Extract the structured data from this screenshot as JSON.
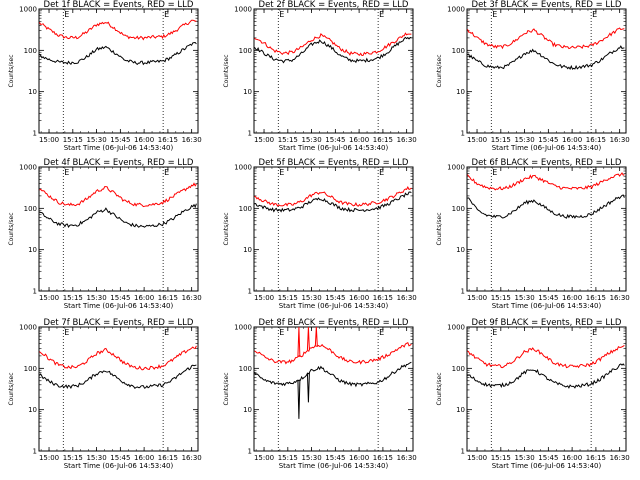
{
  "chart_data": [
    {
      "type": "line",
      "title": "Det 1f BLACK = Events, RED = LLD",
      "xlabel": "Start Time (06-Jul-06 14:53:40)",
      "ylabel": "Counts/sec",
      "yscale": "log",
      "ylim": [
        1,
        1000
      ],
      "ytick_labels": [
        "1",
        "10",
        "100",
        "1000"
      ],
      "xlim": [
        "14:53:40",
        "16:34:00"
      ],
      "xtick_labels": [
        "15:00",
        "15:15",
        "15:30",
        "15:45",
        "16:00",
        "16:15",
        "16:30"
      ],
      "markers": [
        {
          "label": "E",
          "time": "15:09"
        },
        {
          "label": "E",
          "time": "16:12"
        }
      ],
      "x": [
        "14:54",
        "15:00",
        "15:06",
        "15:12",
        "15:18",
        "15:24",
        "15:30",
        "15:36",
        "15:42",
        "15:48",
        "15:54",
        "16:00",
        "16:06",
        "16:12",
        "16:18",
        "16:24",
        "16:30",
        "16:33"
      ],
      "series": [
        {
          "name": "RED",
          "color": "#ff0000",
          "values": [
            460,
            320,
            230,
            200,
            205,
            280,
            420,
            480,
            330,
            220,
            200,
            200,
            210,
            215,
            270,
            380,
            520,
            500
          ]
        },
        {
          "name": "BLACK",
          "color": "#000000",
          "values": [
            75,
            60,
            52,
            50,
            52,
            70,
            105,
            120,
            85,
            58,
            50,
            50,
            52,
            55,
            70,
            100,
            140,
            150
          ]
        }
      ]
    },
    {
      "type": "line",
      "title": "Det 2f BLACK = Events, RED = LLD",
      "xlabel": "Start Time (06-Jul-06 14:53:40)",
      "ylabel": "Counts/sec",
      "yscale": "log",
      "ylim": [
        1,
        1000
      ],
      "ytick_labels": [
        "1",
        "10",
        "100",
        "1000"
      ],
      "xlim": [
        "14:53:40",
        "16:34:00"
      ],
      "xtick_labels": [
        "15:00",
        "15:15",
        "15:30",
        "15:45",
        "16:00",
        "16:15",
        "16:30"
      ],
      "markers": [
        {
          "label": "E",
          "time": "15:09"
        },
        {
          "label": "E",
          "time": "16:12"
        }
      ],
      "x": [
        "14:54",
        "15:00",
        "15:06",
        "15:12",
        "15:18",
        "15:24",
        "15:30",
        "15:36",
        "15:42",
        "15:48",
        "15:54",
        "16:00",
        "16:06",
        "16:12",
        "16:18",
        "16:24",
        "16:30",
        "16:33"
      ],
      "series": [
        {
          "name": "RED",
          "color": "#ff0000",
          "values": [
            210,
            150,
            100,
            85,
            90,
            120,
            180,
            230,
            170,
            110,
            85,
            80,
            85,
            95,
            130,
            180,
            260,
            250
          ]
        },
        {
          "name": "BLACK",
          "color": "#000000",
          "values": [
            120,
            85,
            62,
            55,
            58,
            85,
            140,
            170,
            120,
            75,
            58,
            55,
            58,
            65,
            90,
            140,
            200,
            200
          ]
        }
      ]
    },
    {
      "type": "line",
      "title": "Det 3f BLACK = Events, RED = LLD",
      "xlabel": "Start Time (06-Jul-06 14:53:40)",
      "ylabel": "Counts/sec",
      "yscale": "log",
      "ylim": [
        1,
        1000
      ],
      "ytick_labels": [
        "1",
        "10",
        "100",
        "1000"
      ],
      "xlim": [
        "14:53:40",
        "16:34:00"
      ],
      "xtick_labels": [
        "15:00",
        "15:15",
        "15:30",
        "15:45",
        "16:00",
        "16:15",
        "16:30"
      ],
      "markers": [
        {
          "label": "E",
          "time": "15:09"
        },
        {
          "label": "E",
          "time": "16:12"
        }
      ],
      "x": [
        "14:54",
        "15:00",
        "15:06",
        "15:12",
        "15:18",
        "15:24",
        "15:30",
        "15:36",
        "15:42",
        "15:48",
        "15:54",
        "16:00",
        "16:06",
        "16:12",
        "16:18",
        "16:24",
        "16:30",
        "16:33"
      ],
      "series": [
        {
          "name": "RED",
          "color": "#ff0000",
          "values": [
            320,
            200,
            140,
            120,
            125,
            170,
            260,
            310,
            210,
            140,
            120,
            115,
            120,
            130,
            170,
            240,
            330,
            340
          ]
        },
        {
          "name": "BLACK",
          "color": "#000000",
          "values": [
            80,
            55,
            42,
            38,
            40,
            55,
            85,
            100,
            70,
            48,
            40,
            38,
            40,
            44,
            58,
            85,
            120,
            125
          ]
        }
      ]
    },
    {
      "type": "line",
      "title": "Det 4f BLACK = Events, RED = LLD",
      "xlabel": "Start Time (06-Jul-06 14:53:40)",
      "ylabel": "Counts/sec",
      "yscale": "log",
      "ylim": [
        1,
        1000
      ],
      "ytick_labels": [
        "1",
        "10",
        "100",
        "1000"
      ],
      "xlim": [
        "14:53:40",
        "16:34:00"
      ],
      "xtick_labels": [
        "15:00",
        "15:15",
        "15:30",
        "15:45",
        "16:00",
        "16:15",
        "16:30"
      ],
      "markers": [
        {
          "label": "E",
          "time": "15:09"
        },
        {
          "label": "E",
          "time": "16:12"
        }
      ],
      "x": [
        "14:54",
        "15:00",
        "15:06",
        "15:12",
        "15:18",
        "15:24",
        "15:30",
        "15:36",
        "15:42",
        "15:48",
        "15:54",
        "16:00",
        "16:06",
        "16:12",
        "16:18",
        "16:24",
        "16:30",
        "16:33"
      ],
      "series": [
        {
          "name": "RED",
          "color": "#ff0000",
          "values": [
            300,
            200,
            140,
            120,
            125,
            170,
            260,
            320,
            220,
            150,
            125,
            120,
            125,
            140,
            190,
            260,
            360,
            380
          ]
        },
        {
          "name": "BLACK",
          "color": "#000000",
          "values": [
            80,
            55,
            42,
            38,
            40,
            52,
            80,
            95,
            65,
            45,
            38,
            36,
            38,
            42,
            55,
            80,
            110,
            120
          ]
        }
      ]
    },
    {
      "type": "line",
      "title": "Det 5f BLACK = Events, RED = LLD",
      "xlabel": "Start Time (06-Jul-06 14:53:40)",
      "ylabel": "Counts/sec",
      "yscale": "log",
      "ylim": [
        1,
        1000
      ],
      "ytick_labels": [
        "1",
        "10",
        "100",
        "1000"
      ],
      "xlim": [
        "14:53:40",
        "16:34:00"
      ],
      "xtick_labels": [
        "15:00",
        "15:15",
        "15:30",
        "15:45",
        "16:00",
        "16:15",
        "16:30"
      ],
      "markers": [
        {
          "label": "E",
          "time": "15:09"
        },
        {
          "label": "E",
          "time": "16:12"
        }
      ],
      "x": [
        "14:54",
        "15:00",
        "15:06",
        "15:12",
        "15:18",
        "15:24",
        "15:30",
        "15:36",
        "15:42",
        "15:48",
        "15:54",
        "16:00",
        "16:06",
        "16:12",
        "16:18",
        "16:24",
        "16:30",
        "16:33"
      ],
      "series": [
        {
          "name": "RED",
          "color": "#ff0000",
          "values": [
            200,
            150,
            125,
            120,
            122,
            150,
            210,
            250,
            190,
            140,
            125,
            122,
            128,
            140,
            170,
            220,
            300,
            310
          ]
        },
        {
          "name": "BLACK",
          "color": "#000000",
          "values": [
            130,
            105,
            92,
            90,
            92,
            110,
            150,
            175,
            135,
            102,
            92,
            90,
            94,
            102,
            125,
            165,
            220,
            230
          ]
        }
      ]
    },
    {
      "type": "line",
      "title": "Det 6f BLACK = Events, RED = LLD",
      "xlabel": "Start Time (06-Jul-06 14:53:40)",
      "ylabel": "Counts/sec",
      "yscale": "log",
      "ylim": [
        1,
        1000
      ],
      "ytick_labels": [
        "1",
        "10",
        "100",
        "1000"
      ],
      "xlim": [
        "14:53:40",
        "16:34:00"
      ],
      "xtick_labels": [
        "15:00",
        "15:15",
        "15:30",
        "15:45",
        "16:00",
        "16:15",
        "16:30"
      ],
      "markers": [
        {
          "label": "E",
          "time": "15:09"
        },
        {
          "label": "E",
          "time": "16:12"
        }
      ],
      "x": [
        "14:54",
        "15:00",
        "15:06",
        "15:12",
        "15:18",
        "15:24",
        "15:30",
        "15:36",
        "15:42",
        "15:48",
        "15:54",
        "16:00",
        "16:06",
        "16:12",
        "16:18",
        "16:24",
        "16:30",
        "16:33"
      ],
      "series": [
        {
          "name": "RED",
          "color": "#ff0000",
          "values": [
            600,
            400,
            320,
            300,
            305,
            380,
            520,
            600,
            470,
            360,
            310,
            300,
            305,
            330,
            420,
            560,
            650,
            660
          ]
        },
        {
          "name": "BLACK",
          "color": "#000000",
          "values": [
            190,
            90,
            68,
            62,
            65,
            90,
            135,
            155,
            110,
            78,
            65,
            62,
            64,
            72,
            100,
            140,
            190,
            195
          ]
        }
      ]
    },
    {
      "type": "line",
      "title": "Det 7f BLACK = Events, RED = LLD",
      "xlabel": "Start Time (06-Jul-06 14:53:40)",
      "ylabel": "Counts/sec",
      "yscale": "log",
      "ylim": [
        1,
        1000
      ],
      "ytick_labels": [
        "1",
        "10",
        "100",
        "1000"
      ],
      "xlim": [
        "14:53:40",
        "16:34:00"
      ],
      "xtick_labels": [
        "15:00",
        "15:15",
        "15:30",
        "15:45",
        "16:00",
        "16:15",
        "16:30"
      ],
      "markers": [
        {
          "label": "E",
          "time": "15:09"
        },
        {
          "label": "E",
          "time": "16:12"
        }
      ],
      "x": [
        "14:54",
        "15:00",
        "15:06",
        "15:12",
        "15:18",
        "15:24",
        "15:30",
        "15:36",
        "15:42",
        "15:48",
        "15:54",
        "16:00",
        "16:06",
        "16:12",
        "16:18",
        "16:24",
        "16:30",
        "16:33"
      ],
      "series": [
        {
          "name": "RED",
          "color": "#ff0000",
          "values": [
            270,
            170,
            120,
            105,
            108,
            150,
            230,
            280,
            200,
            130,
            105,
            100,
            105,
            115,
            160,
            230,
            310,
            330
          ]
        },
        {
          "name": "BLACK",
          "color": "#000000",
          "values": [
            70,
            48,
            38,
            36,
            38,
            50,
            75,
            90,
            62,
            44,
            36,
            35,
            37,
            40,
            52,
            78,
            110,
            120
          ]
        }
      ]
    },
    {
      "type": "line",
      "title": "Det 8f BLACK = Events, RED = LLD",
      "xlabel": "Start Time (06-Jul-06 14:53:40)",
      "ylabel": "Counts/sec",
      "yscale": "log",
      "ylim": [
        1,
        1000
      ],
      "ytick_labels": [
        "1",
        "10",
        "100",
        "1000"
      ],
      "xlim": [
        "14:53:40",
        "16:34:00"
      ],
      "xtick_labels": [
        "15:00",
        "15:15",
        "15:30",
        "15:45",
        "16:00",
        "16:15",
        "16:30"
      ],
      "markers": [
        {
          "label": "E",
          "time": "15:09"
        },
        {
          "label": "E",
          "time": "16:12"
        }
      ],
      "x": [
        "14:54",
        "15:00",
        "15:06",
        "15:12",
        "15:18",
        "15:24",
        "15:30",
        "15:36",
        "15:42",
        "15:48",
        "15:54",
        "16:00",
        "16:06",
        "16:12",
        "16:18",
        "16:24",
        "16:30",
        "16:33"
      ],
      "series": [
        {
          "name": "RED",
          "color": "#ff0000",
          "values": [
            280,
            190,
            150,
            140,
            150,
            210,
            320,
            370,
            270,
            180,
            145,
            140,
            150,
            165,
            210,
            290,
            380,
            390
          ],
          "spikes": [
            {
              "time": "15:22",
              "value": 1000
            },
            {
              "time": "15:28",
              "value": 1000
            },
            {
              "time": "15:33",
              "value": 1000
            }
          ]
        },
        {
          "name": "BLACK",
          "color": "#000000",
          "values": [
            75,
            52,
            44,
            42,
            45,
            58,
            90,
            105,
            72,
            50,
            42,
            40,
            42,
            46,
            62,
            92,
            125,
            130
          ],
          "spikes": [
            {
              "time": "15:22",
              "value": 6
            },
            {
              "time": "15:28",
              "value": 15
            }
          ]
        }
      ]
    },
    {
      "type": "line",
      "title": "Det 9f BLACK = Events, RED = LLD",
      "xlabel": "Start Time (06-Jul-06 14:53:40)",
      "ylabel": "Counts/sec",
      "yscale": "log",
      "ylim": [
        1,
        1000
      ],
      "ytick_labels": [
        "1",
        "10",
        "100",
        "1000"
      ],
      "xlim": [
        "14:53:40",
        "16:34:00"
      ],
      "xtick_labels": [
        "15:00",
        "15:15",
        "15:30",
        "15:45",
        "16:00",
        "16:15",
        "16:30"
      ],
      "markers": [
        {
          "label": "E",
          "time": "15:09"
        },
        {
          "label": "E",
          "time": "16:12"
        }
      ],
      "x": [
        "14:54",
        "15:00",
        "15:06",
        "15:12",
        "15:18",
        "15:24",
        "15:30",
        "15:36",
        "15:42",
        "15:48",
        "15:54",
        "16:00",
        "16:06",
        "16:12",
        "16:18",
        "16:24",
        "16:30",
        "16:33"
      ],
      "series": [
        {
          "name": "RED",
          "color": "#ff0000",
          "values": [
            260,
            170,
            125,
            112,
            115,
            160,
            250,
            300,
            210,
            140,
            115,
            110,
            115,
            125,
            170,
            240,
            320,
            340
          ]
        },
        {
          "name": "BLACK",
          "color": "#000000",
          "values": [
            70,
            50,
            40,
            38,
            40,
            52,
            80,
            95,
            65,
            46,
            38,
            36,
            38,
            42,
            55,
            82,
            115,
            125
          ]
        }
      ]
    }
  ]
}
